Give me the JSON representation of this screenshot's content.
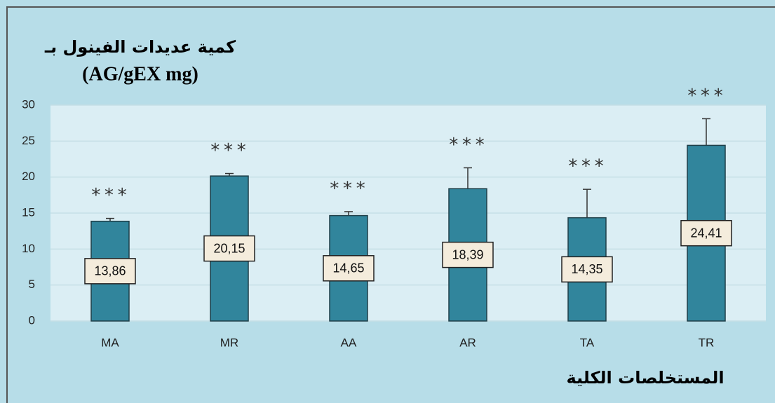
{
  "chart_data": {
    "type": "bar",
    "title": [
      "كمية عديدات الفينول بـ",
      "(AG/gEX mg)"
    ],
    "xlabel": "المستخلصات الكلية",
    "categories": [
      "MA",
      "MR",
      "AA",
      "AR",
      "TA",
      "TR"
    ],
    "values": [
      13.86,
      20.15,
      14.65,
      18.39,
      14.35,
      24.41
    ],
    "value_labels": [
      "13,86",
      "20,15",
      "14,65",
      "18,39",
      "14,35",
      "24,41"
    ],
    "errors": [
      0.4,
      0.35,
      0.55,
      2.9,
      3.95,
      3.7
    ],
    "annotations": [
      "***",
      "***",
      "***",
      "***",
      "***",
      "***"
    ],
    "color": "#31859c",
    "ylim": [
      0,
      30
    ],
    "yticks": [
      0,
      5,
      10,
      15,
      20,
      25,
      30
    ],
    "grid": true
  }
}
